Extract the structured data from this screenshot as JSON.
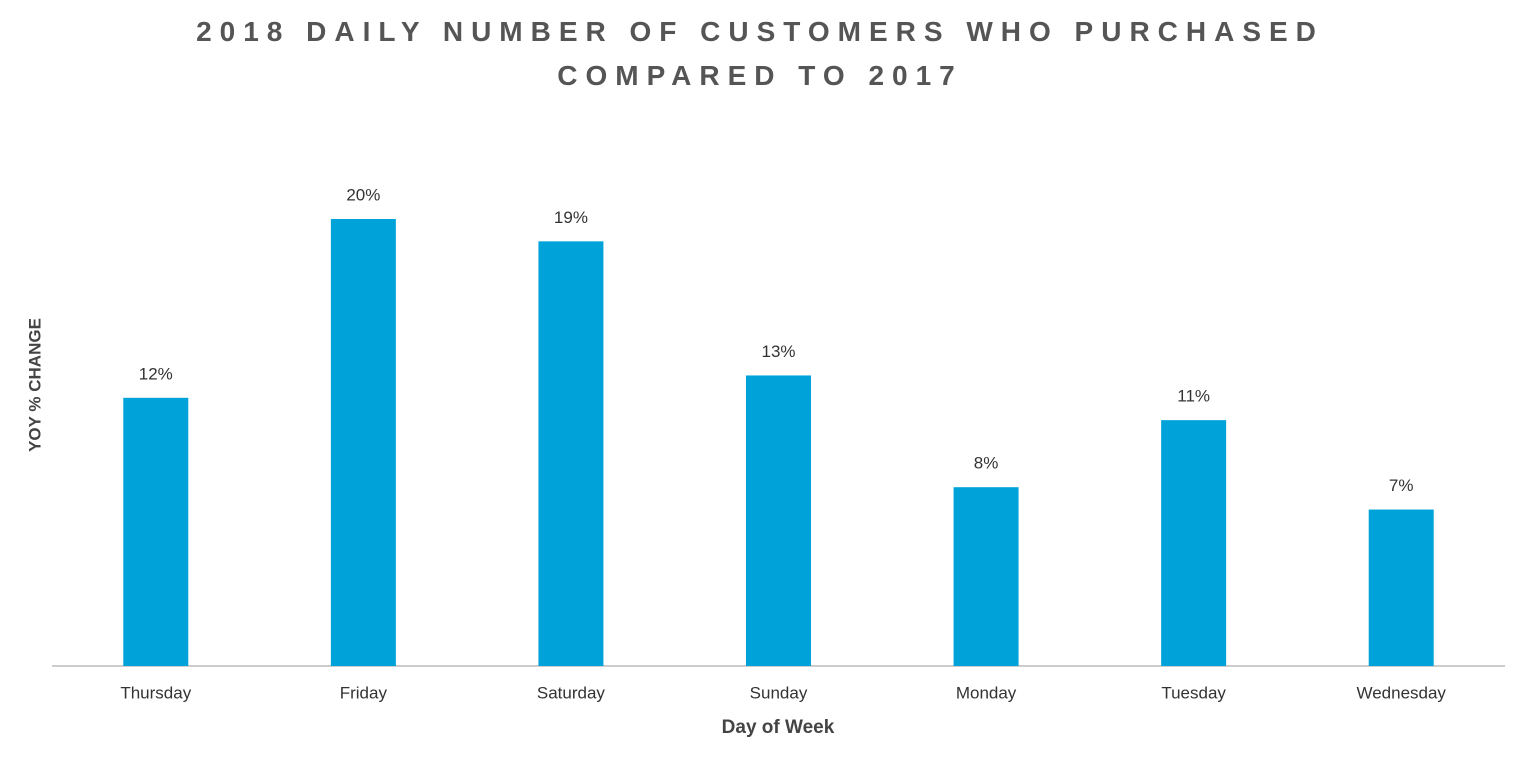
{
  "chart_data": {
    "type": "bar",
    "title": "2018 DAILY NUMBER OF CUSTOMERS WHO PURCHASED COMPARED TO 2017",
    "x_label": "Day of Week",
    "y_label": "YOY % CHANGE",
    "categories": [
      "Thursday",
      "Friday",
      "Saturday",
      "Sunday",
      "Monday",
      "Tuesday",
      "Wednesday"
    ],
    "values": [
      12,
      20,
      19,
      13,
      8,
      11,
      7
    ],
    "value_labels": [
      "12%",
      "20%",
      "19%",
      "13%",
      "8%",
      "11%",
      "7%"
    ],
    "color": "#00a3d9"
  }
}
